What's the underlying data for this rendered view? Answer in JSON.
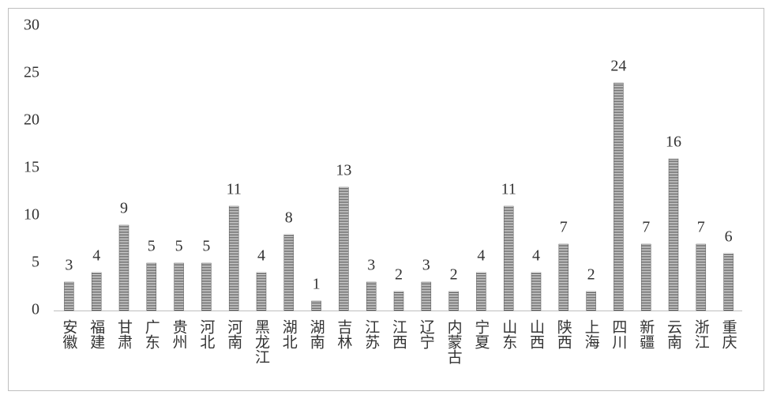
{
  "chart_data": {
    "type": "bar",
    "categories": [
      "安徽",
      "福建",
      "甘肃",
      "广东",
      "贵州",
      "河北",
      "河南",
      "黑龙江",
      "湖北",
      "湖南",
      "吉林",
      "江苏",
      "江西",
      "辽宁",
      "内蒙古",
      "宁夏",
      "山东",
      "山西",
      "陕西",
      "上海",
      "四川",
      "新疆",
      "云南",
      "浙江",
      "重庆"
    ],
    "values": [
      3,
      4,
      9,
      5,
      5,
      5,
      11,
      4,
      8,
      1,
      13,
      3,
      2,
      3,
      2,
      4,
      11,
      4,
      7,
      2,
      24,
      7,
      16,
      7,
      6
    ],
    "color": "#555555",
    "ylim": [
      0,
      30
    ],
    "yticks": [
      0,
      5,
      10,
      15,
      20,
      25,
      30
    ],
    "grid": false
  }
}
